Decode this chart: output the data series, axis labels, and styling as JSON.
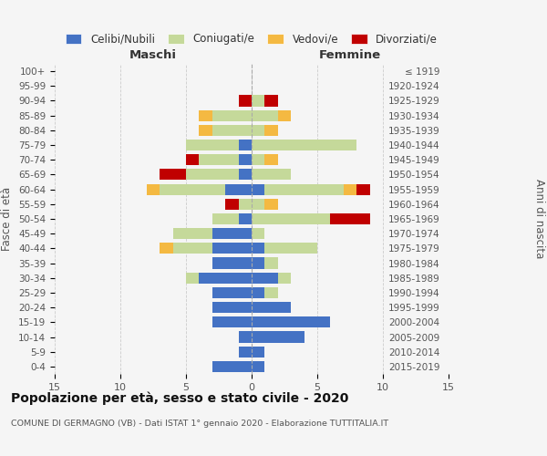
{
  "age_groups": [
    "0-4",
    "5-9",
    "10-14",
    "15-19",
    "20-24",
    "25-29",
    "30-34",
    "35-39",
    "40-44",
    "45-49",
    "50-54",
    "55-59",
    "60-64",
    "65-69",
    "70-74",
    "75-79",
    "80-84",
    "85-89",
    "90-94",
    "95-99",
    "100+"
  ],
  "birth_years": [
    "2015-2019",
    "2010-2014",
    "2005-2009",
    "2000-2004",
    "1995-1999",
    "1990-1994",
    "1985-1989",
    "1980-1984",
    "1975-1979",
    "1970-1974",
    "1965-1969",
    "1960-1964",
    "1955-1959",
    "1950-1954",
    "1945-1949",
    "1940-1944",
    "1935-1939",
    "1930-1934",
    "1925-1929",
    "1920-1924",
    "≤ 1919"
  ],
  "males": {
    "celibi": [
      3,
      1,
      1,
      3,
      3,
      3,
      4,
      3,
      3,
      3,
      1,
      0,
      2,
      1,
      1,
      1,
      0,
      0,
      0,
      0,
      0
    ],
    "coniugati": [
      0,
      0,
      0,
      0,
      0,
      0,
      1,
      0,
      3,
      3,
      2,
      1,
      5,
      4,
      3,
      4,
      3,
      3,
      0,
      0,
      0
    ],
    "vedovi": [
      0,
      0,
      0,
      0,
      0,
      0,
      0,
      0,
      1,
      0,
      0,
      0,
      1,
      0,
      0,
      0,
      1,
      1,
      0,
      0,
      0
    ],
    "divorziati": [
      0,
      0,
      0,
      0,
      0,
      0,
      0,
      0,
      0,
      0,
      0,
      1,
      0,
      2,
      1,
      0,
      0,
      0,
      1,
      0,
      0
    ]
  },
  "females": {
    "nubili": [
      1,
      1,
      4,
      6,
      3,
      1,
      2,
      1,
      1,
      0,
      0,
      0,
      1,
      0,
      0,
      0,
      0,
      0,
      0,
      0,
      0
    ],
    "coniugate": [
      0,
      0,
      0,
      0,
      0,
      1,
      1,
      1,
      4,
      1,
      6,
      1,
      6,
      3,
      1,
      8,
      1,
      2,
      1,
      0,
      0
    ],
    "vedove": [
      0,
      0,
      0,
      0,
      0,
      0,
      0,
      0,
      0,
      0,
      0,
      1,
      1,
      0,
      1,
      0,
      1,
      1,
      0,
      0,
      0
    ],
    "divorziate": [
      0,
      0,
      0,
      0,
      0,
      0,
      0,
      0,
      0,
      0,
      3,
      0,
      1,
      0,
      0,
      0,
      0,
      0,
      1,
      0,
      0
    ]
  },
  "color_celibi": "#4472c4",
  "color_coniugati": "#c5d99a",
  "color_vedovi": "#f4b942",
  "color_divorziati": "#c00000",
  "title": "Popolazione per età, sesso e stato civile - 2020",
  "subtitle": "COMUNE DI GERMAGNO (VB) - Dati ISTAT 1° gennaio 2020 - Elaborazione TUTTITALIA.IT",
  "xlabel_left": "Maschi",
  "xlabel_right": "Femmine",
  "ylabel_left": "Fasce di età",
  "ylabel_right": "Anni di nascita",
  "xlim": 15,
  "bg_color": "#f5f5f5",
  "bar_height": 0.75
}
